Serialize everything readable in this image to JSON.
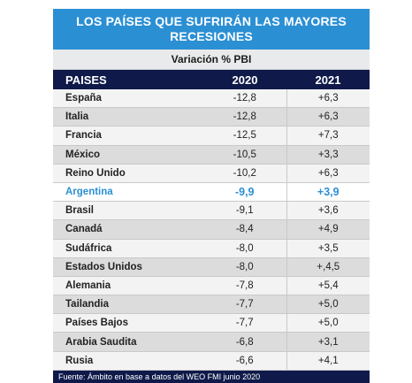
{
  "chart_data": {
    "type": "table",
    "title": "LOS PAÍSES QUE SUFRIRÁN LAS MAYORES RECESIONES",
    "subtitle": "Variación % PBI",
    "columns": [
      "PAISES",
      "2020",
      "2021"
    ],
    "highlight_color": "#2b8fd4",
    "rows": [
      {
        "country": "España",
        "v2020": "-12,8",
        "v2021": "+6,3"
      },
      {
        "country": "Italia",
        "v2020": "-12,8",
        "v2021": "+6,3"
      },
      {
        "country": "Francia",
        "v2020": "-12,5",
        "v2021": "+7,3"
      },
      {
        "country": "México",
        "v2020": "-10,5",
        "v2021": "+3,3"
      },
      {
        "country": "Reino Unido",
        "v2020": "-10,2",
        "v2021": "+6,3"
      },
      {
        "country": "Argentina",
        "v2020": "-9,9",
        "v2021": "+3,9",
        "highlight": true
      },
      {
        "country": "Brasil",
        "v2020": "-9,1",
        "v2021": "+3,6"
      },
      {
        "country": "Canadá",
        "v2020": "-8,4",
        "v2021": "+4,9"
      },
      {
        "country": "Sudáfrica",
        "v2020": "-8,0",
        "v2021": "+3,5"
      },
      {
        "country": "Estados Unidos",
        "v2020": "-8,0",
        "v2021": "+,4,5"
      },
      {
        "country": "Alemania",
        "v2020": "-7,8",
        "v2021": "+5,4"
      },
      {
        "country": "Tailandia",
        "v2020": "-7,7",
        "v2021": "+5,0"
      },
      {
        "country": "Países Bajos",
        "v2020": "-7,7",
        "v2021": "+5,0"
      },
      {
        "country": "Arabia Saudita",
        "v2020": "-6,8",
        "v2021": "+3,1"
      },
      {
        "country": "Rusia",
        "v2020": "-6,6",
        "v2021": "+4,1"
      }
    ],
    "source": "Fuente: Ámbito en base a datos del WEO FMI junio 2020"
  }
}
